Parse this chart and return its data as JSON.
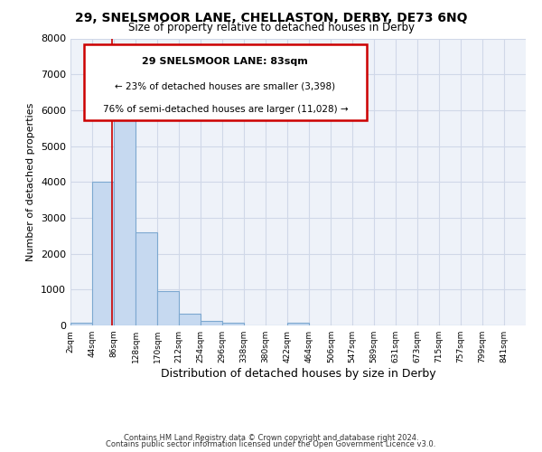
{
  "title_line1": "29, SNELSMOOR LANE, CHELLASTON, DERBY, DE73 6NQ",
  "title_line2": "Size of property relative to detached houses in Derby",
  "xlabel": "Distribution of detached houses by size in Derby",
  "ylabel": "Number of detached properties",
  "bar_left_edges": [
    2,
    44,
    86,
    128,
    170,
    212,
    254,
    296,
    338,
    380,
    422,
    464,
    506,
    547,
    589,
    631,
    673,
    715,
    757,
    799
  ],
  "bar_heights": [
    65,
    4000,
    6600,
    2600,
    960,
    320,
    130,
    80,
    0,
    0,
    80,
    0,
    0,
    0,
    0,
    0,
    0,
    0,
    0,
    0
  ],
  "bin_width": 42,
  "bar_color": "#c6d9f0",
  "bar_edge_color": "#7da8d0",
  "property_line_x": 83,
  "property_line_color": "#cc0000",
  "ylim": [
    0,
    8000
  ],
  "yticks": [
    0,
    1000,
    2000,
    3000,
    4000,
    5000,
    6000,
    7000,
    8000
  ],
  "xlim_left": 2,
  "xlim_right": 883,
  "xtick_positions": [
    2,
    44,
    86,
    128,
    170,
    212,
    254,
    296,
    338,
    380,
    422,
    464,
    506,
    547,
    589,
    631,
    673,
    715,
    757,
    799,
    841
  ],
  "xtick_labels": [
    "2sqm",
    "44sqm",
    "86sqm",
    "128sqm",
    "170sqm",
    "212sqm",
    "254sqm",
    "296sqm",
    "338sqm",
    "380sqm",
    "422sqm",
    "464sqm",
    "506sqm",
    "547sqm",
    "589sqm",
    "631sqm",
    "673sqm",
    "715sqm",
    "757sqm",
    "799sqm",
    "841sqm"
  ],
  "annotation_text_line1": "29 SNELSMOOR LANE: 83sqm",
  "annotation_text_line2": "← 23% of detached houses are smaller (3,398)",
  "annotation_text_line3": "76% of semi-detached houses are larger (11,028) →",
  "grid_color": "#d0d8e8",
  "background_color": "#eef2f9",
  "footer_line1": "Contains HM Land Registry data © Crown copyright and database right 2024.",
  "footer_line2": "Contains public sector information licensed under the Open Government Licence v3.0."
}
